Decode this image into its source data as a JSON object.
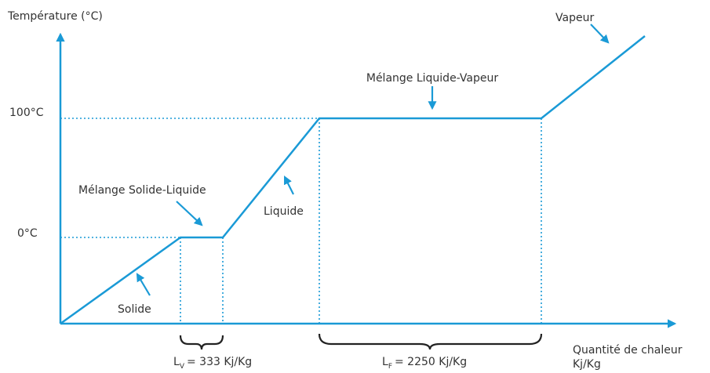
{
  "axes": {
    "y_label": "Température (°C)",
    "x_label_line1": "Quantité de chaleur",
    "x_label_line2": "Kj/Kg"
  },
  "levels": [
    "100°C",
    "0°C"
  ],
  "phases": [
    "Vapeur",
    "Mélange Liquide-Vapeur",
    "Mélange Solide-Liquide",
    "Liquide",
    "Solide"
  ],
  "latent": [
    {
      "symbol": "L",
      "subscript": "V",
      "text": "= 333 Kj/Kg"
    },
    {
      "symbol": "L",
      "subscript": "F",
      "text": "= 2250 Kj/Kg"
    }
  ]
}
